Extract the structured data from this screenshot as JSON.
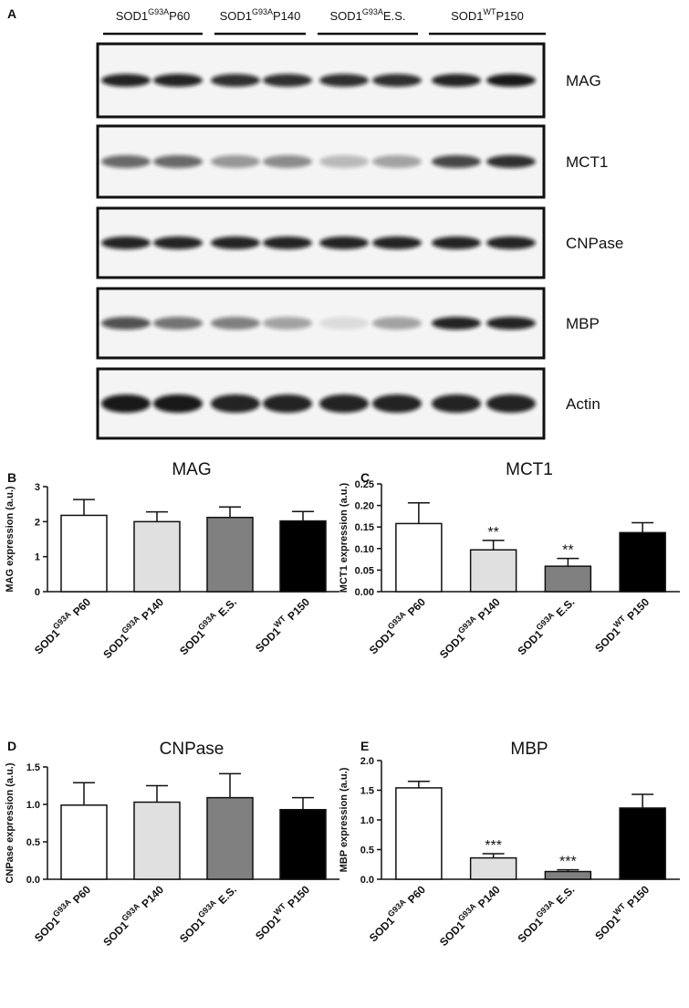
{
  "blot": {
    "panel": "A",
    "groups": [
      [
        "SOD1",
        "G93A",
        "P60"
      ],
      [
        "SOD1",
        "G93A",
        "P140"
      ],
      [
        "SOD1",
        "G93A",
        "E.S."
      ],
      [
        "SOD1",
        "WT",
        "P150"
      ]
    ],
    "proteins": [
      "MAG",
      "MCT1",
      "CNPase",
      "MBP",
      "Actin"
    ]
  },
  "chart_data": [
    {
      "type": "bar",
      "panel": "B",
      "title": "MAG",
      "ylabel": "MAG expression (a.u.)",
      "categories": [
        [
          "SOD1",
          "G93A",
          " P60"
        ],
        [
          "SOD1",
          "G93A",
          " P140"
        ],
        [
          "SOD1",
          "G93A",
          " E.S."
        ],
        [
          "SOD1",
          "WT",
          " P150"
        ]
      ],
      "values": [
        2.18,
        2.0,
        2.12,
        2.02
      ],
      "errors": [
        0.45,
        0.28,
        0.3,
        0.27
      ],
      "annotations": [
        null,
        null,
        null,
        null
      ],
      "colors": [
        "#ffffff",
        "#e0e0e0",
        "#808080",
        "#000000"
      ],
      "ylim": [
        0,
        3
      ],
      "yticks": [
        0,
        1,
        2,
        3
      ]
    },
    {
      "type": "bar",
      "panel": "C",
      "title": "MCT1",
      "ylabel": "MCT1 expression (a.u.)",
      "categories": [
        [
          "SOD1",
          "G93A",
          " P60"
        ],
        [
          "SOD1",
          "G93A",
          " P140"
        ],
        [
          "SOD1",
          "G93A",
          " E.S."
        ],
        [
          "SOD1",
          "WT",
          " P150"
        ]
      ],
      "values": [
        0.158,
        0.097,
        0.059,
        0.137
      ],
      "errors": [
        0.048,
        0.022,
        0.018,
        0.023
      ],
      "annotations": [
        null,
        "**",
        "**",
        null
      ],
      "colors": [
        "#ffffff",
        "#e0e0e0",
        "#808080",
        "#000000"
      ],
      "ylim": [
        0,
        0.25
      ],
      "yticks": [
        {
          "value": 0,
          "label": "0.00"
        },
        0.05,
        {
          "value": 0.1,
          "label": "0.10"
        },
        0.15,
        {
          "value": 0.2,
          "label": "0.20"
        },
        0.25
      ]
    },
    {
      "type": "bar",
      "panel": "D",
      "title": "CNPase",
      "ylabel": "CNPase expression (a.u.)",
      "categories": [
        [
          "SOD1",
          "G93A",
          " P60"
        ],
        [
          "SOD1",
          "G93A",
          " P140"
        ],
        [
          "SOD1",
          "G93A",
          " E.S."
        ],
        [
          "SOD1",
          "WT",
          " P150"
        ]
      ],
      "values": [
        0.99,
        1.03,
        1.09,
        0.93
      ],
      "errors": [
        0.3,
        0.22,
        0.32,
        0.16
      ],
      "annotations": [
        null,
        null,
        null,
        null
      ],
      "colors": [
        "#ffffff",
        "#e0e0e0",
        "#808080",
        "#000000"
      ],
      "ylim": [
        0,
        1.5
      ],
      "yticks": [
        {
          "value": 0,
          "label": "0.0"
        },
        0.5,
        {
          "value": 1,
          "label": "1.0"
        },
        1.5
      ]
    },
    {
      "type": "bar",
      "panel": "E",
      "title": "MBP",
      "ylabel": "MBP expression (a.u.)",
      "categories": [
        [
          "SOD1",
          "G93A",
          " P60"
        ],
        [
          "SOD1",
          "G93A",
          " P140"
        ],
        [
          "SOD1",
          "G93A",
          " E.S."
        ],
        [
          "SOD1",
          "WT",
          " P150"
        ]
      ],
      "values": [
        1.54,
        0.36,
        0.13,
        1.2
      ],
      "errors": [
        0.11,
        0.07,
        0.03,
        0.23
      ],
      "annotations": [
        null,
        "***",
        "***",
        null
      ],
      "colors": [
        "#ffffff",
        "#e0e0e0",
        "#808080",
        "#000000"
      ],
      "ylim": [
        0,
        2
      ],
      "yticks": [
        {
          "value": 0,
          "label": "0.0"
        },
        0.5,
        {
          "value": 1,
          "label": "1.0"
        },
        1.5,
        {
          "value": 2,
          "label": "2.0"
        }
      ]
    }
  ]
}
